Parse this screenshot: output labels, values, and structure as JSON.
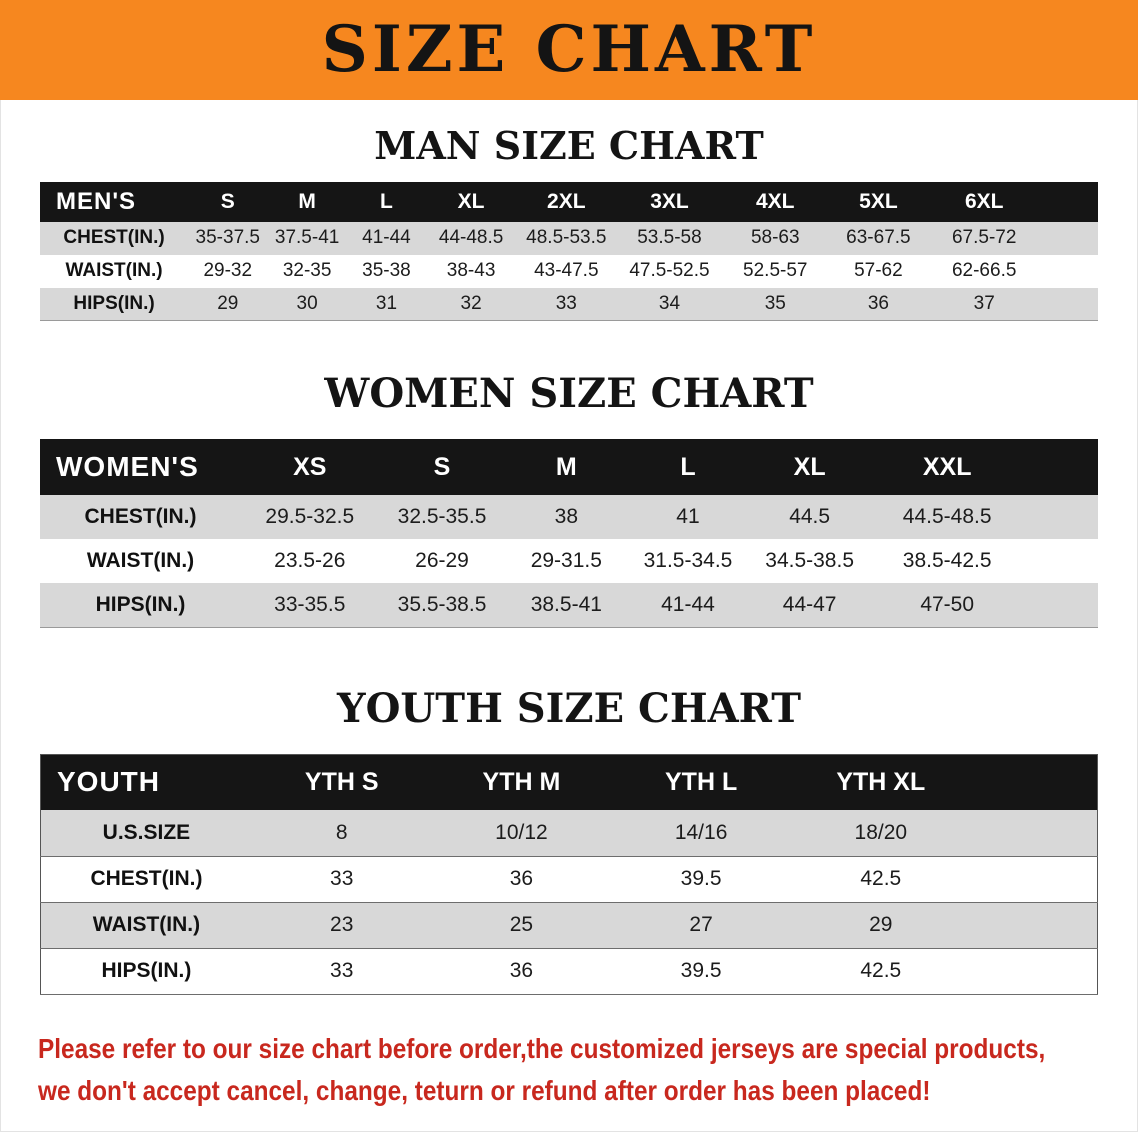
{
  "banner": {
    "title": "SIZE CHART"
  },
  "tables": [
    {
      "title": "MAN SIZE CHART",
      "header": [
        "MEN'S",
        "S",
        "M",
        "L",
        "XL",
        "2XL",
        "3XL",
        "4XL",
        "5XL",
        "6XL"
      ],
      "rows": [
        [
          "CHEST(IN.)",
          "35-37.5",
          "37.5-41",
          "41-44",
          "44-48.5",
          "48.5-53.5",
          "53.5-58",
          "58-63",
          "63-67.5",
          "67.5-72"
        ],
        [
          "WAIST(IN.)",
          "29-32",
          "32-35",
          "35-38",
          "38-43",
          "43-47.5",
          "47.5-52.5",
          "52.5-57",
          "57-62",
          "62-66.5"
        ],
        [
          "HIPS(IN.)",
          "29",
          "30",
          "31",
          "32",
          "33",
          "34",
          "35",
          "36",
          "37"
        ]
      ]
    },
    {
      "title": "WOMEN SIZE CHART",
      "header": [
        "WOMEN'S",
        "XS",
        "S",
        "M",
        "L",
        "XL",
        "XXL"
      ],
      "rows": [
        [
          "CHEST(IN.)",
          "29.5-32.5",
          "32.5-35.5",
          "38",
          "41",
          "44.5",
          "44.5-48.5"
        ],
        [
          "WAIST(IN.)",
          "23.5-26",
          "26-29",
          "29-31.5",
          "31.5-34.5",
          "34.5-38.5",
          "38.5-42.5"
        ],
        [
          "HIPS(IN.)",
          "33-35.5",
          "35.5-38.5",
          "38.5-41",
          "41-44",
          "44-47",
          "47-50"
        ]
      ]
    },
    {
      "title": "YOUTH SIZE CHART",
      "header": [
        "YOUTH",
        "YTH S",
        "YTH M",
        "YTH L",
        "YTH XL"
      ],
      "rows": [
        [
          "U.S.SIZE",
          "8",
          "10/12",
          "14/16",
          "18/20"
        ],
        [
          "CHEST(IN.)",
          "33",
          "36",
          "39.5",
          "42.5"
        ],
        [
          "WAIST(IN.)",
          "23",
          "25",
          "27",
          "29"
        ],
        [
          "HIPS(IN.)",
          "33",
          "36",
          "39.5",
          "42.5"
        ]
      ]
    }
  ],
  "footer": {
    "line1": "Please refer to our size chart before order,the customized jerseys are special products,",
    "line2": "we don't accept cancel, change, teturn or refund after order has been placed!"
  },
  "colors": {
    "banner_orange": "#f6871f",
    "header_black": "#151515",
    "row_gray": "#d8d8d8",
    "note_red": "#c8281e"
  }
}
